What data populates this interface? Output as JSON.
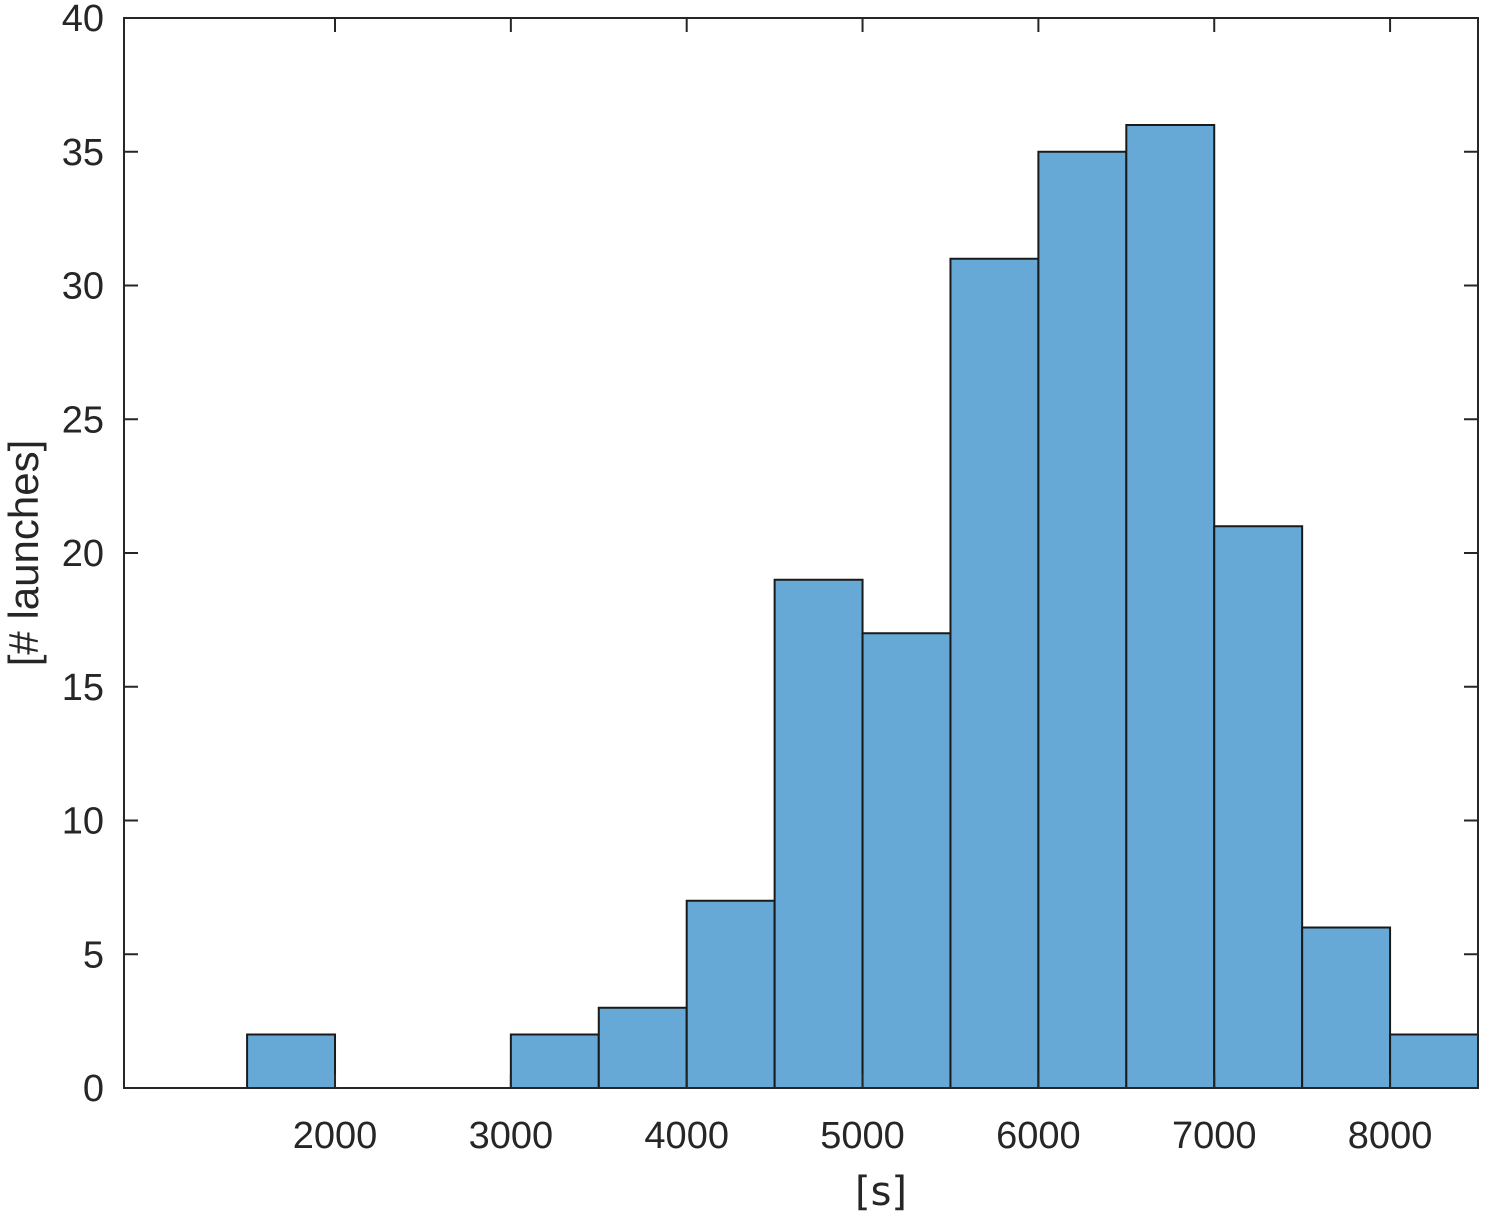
{
  "chart_data": {
    "type": "bar",
    "subtype": "histogram",
    "bin_width": 500,
    "bin_edges": [
      1500,
      2000,
      2500,
      3000,
      3500,
      4000,
      4500,
      5000,
      5500,
      6000,
      6500,
      7000,
      7500,
      8000,
      8500
    ],
    "values": [
      2,
      0,
      0,
      2,
      3,
      7,
      19,
      17,
      31,
      35,
      36,
      21,
      6,
      2
    ],
    "xlabel": "[s]",
    "ylabel": "[# launches]",
    "xlim": [
      800,
      8500
    ],
    "ylim": [
      0,
      40
    ],
    "xticks": [
      2000,
      3000,
      4000,
      5000,
      6000,
      7000,
      8000
    ],
    "yticks": [
      0,
      5,
      10,
      15,
      20,
      25,
      30,
      35,
      40
    ],
    "grid": false,
    "legend": "none",
    "colors": {
      "bar_fill": "#66a9d6",
      "bar_edge": "#1a1a1a",
      "axis": "#262626"
    }
  }
}
